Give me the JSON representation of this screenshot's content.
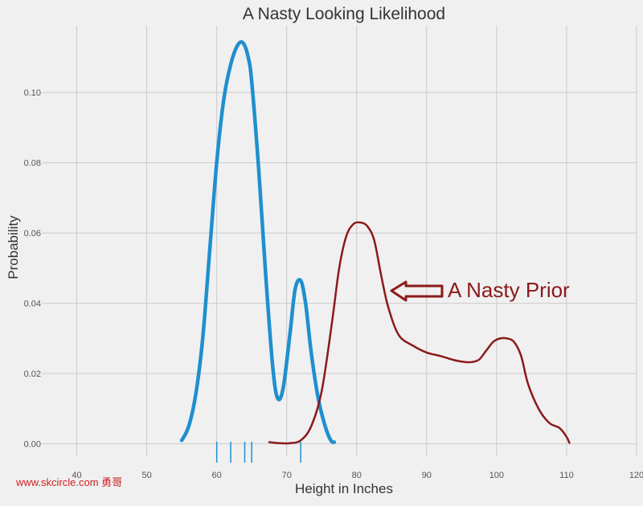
{
  "chart_data": {
    "type": "line",
    "title": "A Nasty Looking Likelihood",
    "xlabel": "Height in Inches",
    "ylabel": "Probability",
    "xlim": [
      35,
      120
    ],
    "ylim": [
      -0.0035,
      0.119
    ],
    "grid": true,
    "x_ticks": [
      40,
      50,
      60,
      70,
      80,
      90,
      100,
      110,
      120
    ],
    "y_ticks": [
      0.0,
      0.02,
      0.04,
      0.06,
      0.08,
      0.1
    ],
    "series": [
      {
        "color": "#1f8fd0",
        "x": [
          55.0,
          56.0,
          57.0,
          58.0,
          59.0,
          60.0,
          61.0,
          62.0,
          63.0,
          63.8,
          64.5,
          65.0,
          66.0,
          67.0,
          68.0,
          68.7,
          69.5,
          70.5,
          71.2,
          72.0,
          72.7,
          73.5,
          74.5,
          75.5,
          76.3,
          76.8
        ],
        "y": [
          0.001,
          0.005,
          0.014,
          0.03,
          0.055,
          0.08,
          0.098,
          0.108,
          0.1135,
          0.114,
          0.11,
          0.103,
          0.078,
          0.048,
          0.022,
          0.013,
          0.016,
          0.032,
          0.044,
          0.0465,
          0.04,
          0.026,
          0.013,
          0.005,
          0.001,
          0.0005
        ]
      },
      {
        "color": "#8b1a1a",
        "x": [
          67.5,
          69.0,
          70.5,
          72.0,
          73.5,
          75.0,
          76.5,
          77.5,
          78.5,
          79.5,
          80.5,
          81.5,
          82.5,
          83.5,
          84.5,
          86.0,
          88.0,
          90.0,
          92.0,
          94.0,
          95.5,
          96.5,
          97.5,
          98.5,
          99.5,
          100.5,
          101.5,
          102.5,
          103.5,
          104.5,
          106.0,
          107.5,
          109.0,
          110.0,
          110.4
        ],
        "y": [
          0.0005,
          0.0002,
          0.0002,
          0.001,
          0.005,
          0.015,
          0.035,
          0.05,
          0.059,
          0.0625,
          0.063,
          0.062,
          0.058,
          0.048,
          0.039,
          0.031,
          0.028,
          0.026,
          0.025,
          0.0238,
          0.0233,
          0.0233,
          0.024,
          0.0265,
          0.029,
          0.03,
          0.03,
          0.029,
          0.025,
          0.017,
          0.01,
          0.006,
          0.0045,
          0.002,
          0.0003
        ]
      }
    ],
    "rug_x": [
      60,
      62,
      64,
      65,
      72
    ],
    "annotation": {
      "text": "A Nasty Prior",
      "color": "#8b1a1a"
    },
    "watermark": "www.skcircle.com 勇哥"
  }
}
